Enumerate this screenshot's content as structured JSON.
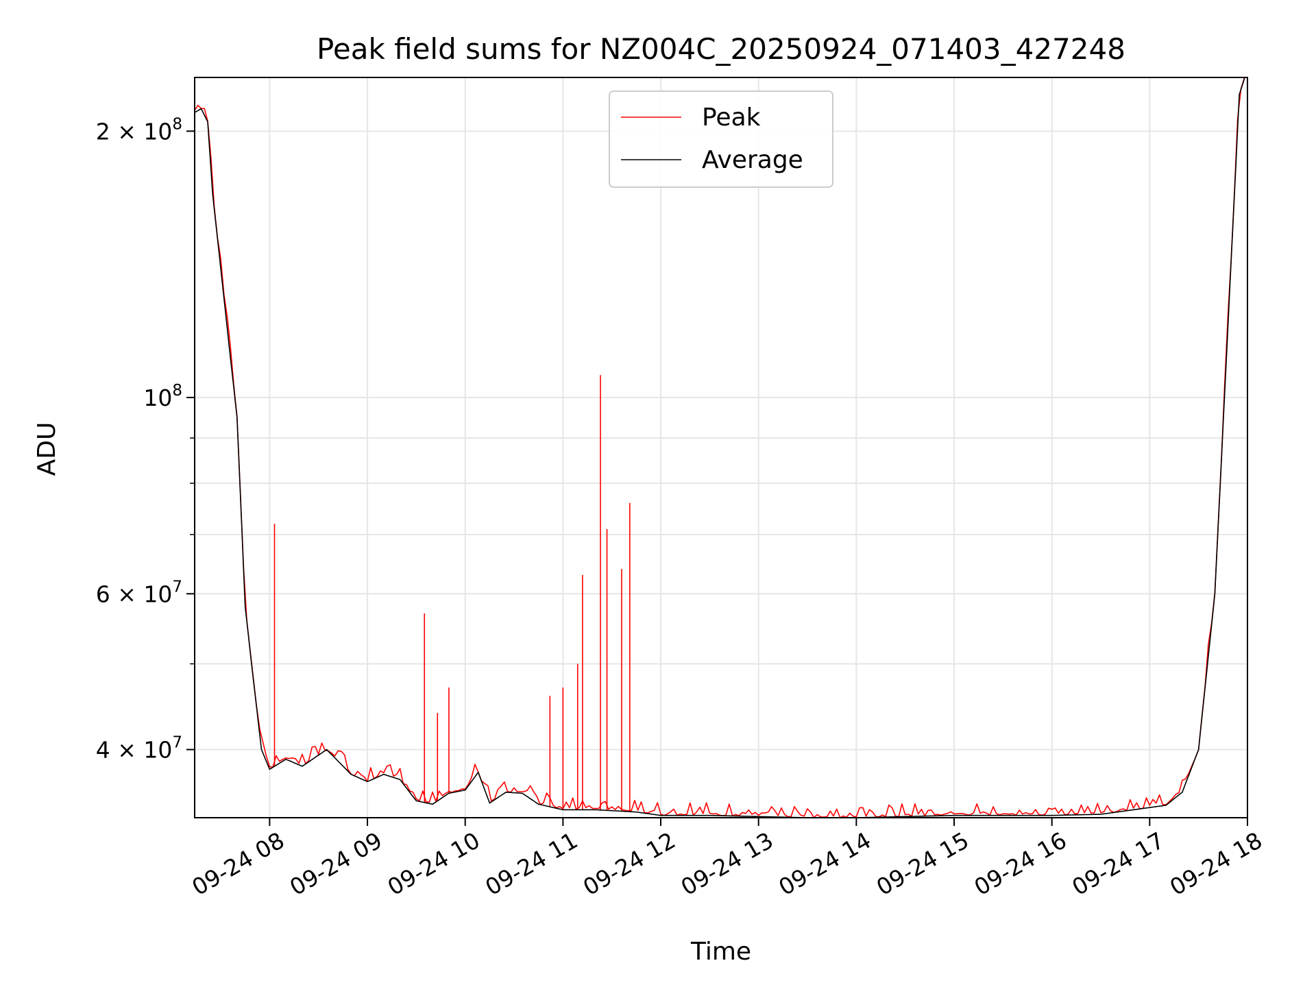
{
  "chart_data": {
    "type": "line",
    "title": "Peak field sums for NZ004C_20250924_071403_427248",
    "xlabel": "Time",
    "ylabel": "ADU",
    "x_scale": "time",
    "y_scale": "log",
    "xlim": [
      "2025-09-24 07:14",
      "2025-09-24 18:00"
    ],
    "ylim": [
      33500000,
      230000000
    ],
    "grid": true,
    "legend_position": "top-center",
    "x_ticks": [
      "09-24 08",
      "09-24 09",
      "09-24 10",
      "09-24 11",
      "09-24 12",
      "09-24 13",
      "09-24 14",
      "09-24 15",
      "09-24 16",
      "09-24 17",
      "09-24 18"
    ],
    "y_ticks": [
      {
        "value": 40000000,
        "label": "4 × 10",
        "exp": "7"
      },
      {
        "value": 60000000,
        "label": "6 × 10",
        "exp": "7"
      },
      {
        "value": 100000000,
        "label": "10",
        "exp": "8"
      },
      {
        "value": 200000000,
        "label": "2 × 10",
        "exp": "8"
      }
    ],
    "y_minor_ticks": [
      30000000,
      50000000,
      70000000,
      80000000,
      90000000
    ],
    "series": [
      {
        "name": "Average",
        "color": "#000000",
        "x": [
          "2025-09-24 07:14",
          "2025-09-24 07:18",
          "2025-09-24 07:22",
          "2025-09-24 07:25",
          "2025-09-24 07:30",
          "2025-09-24 07:35",
          "2025-09-24 07:40",
          "2025-09-24 07:45",
          "2025-09-24 07:50",
          "2025-09-24 07:55",
          "2025-09-24 08:00",
          "2025-09-24 08:10",
          "2025-09-24 08:20",
          "2025-09-24 08:35",
          "2025-09-24 08:50",
          "2025-09-24 09:00",
          "2025-09-24 09:10",
          "2025-09-24 09:20",
          "2025-09-24 09:30",
          "2025-09-24 09:40",
          "2025-09-24 09:50",
          "2025-09-24 10:00",
          "2025-09-24 10:08",
          "2025-09-24 10:15",
          "2025-09-24 10:25",
          "2025-09-24 10:35",
          "2025-09-24 10:45",
          "2025-09-24 11:00",
          "2025-09-24 11:20",
          "2025-09-24 11:45",
          "2025-09-24 12:00",
          "2025-09-24 12:30",
          "2025-09-24 13:00",
          "2025-09-24 13:30",
          "2025-09-24 14:00",
          "2025-09-24 14:30",
          "2025-09-24 15:00",
          "2025-09-24 15:30",
          "2025-09-24 16:00",
          "2025-09-24 16:30",
          "2025-09-24 17:00",
          "2025-09-24 17:10",
          "2025-09-24 17:20",
          "2025-09-24 17:30",
          "2025-09-24 17:40",
          "2025-09-24 17:48",
          "2025-09-24 17:55",
          "2025-09-24 18:00"
        ],
        "y": [
          210000000,
          212000000,
          205000000,
          170000000,
          140000000,
          115000000,
          95000000,
          58000000,
          48000000,
          40000000,
          38000000,
          39000000,
          38300000,
          40000000,
          37500000,
          36800000,
          37500000,
          37000000,
          35000000,
          34700000,
          35700000,
          36000000,
          37700000,
          34800000,
          35800000,
          35700000,
          34700000,
          34200000,
          34200000,
          34000000,
          33700000,
          33700000,
          33600000,
          33500000,
          33500000,
          33600000,
          33700000,
          33700000,
          33700000,
          33800000,
          34400000,
          34600000,
          35800000,
          40000000,
          60000000,
          120000000,
          220000000,
          235000000
        ]
      },
      {
        "name": "Peak",
        "color": "#ff0000",
        "spikes": [
          {
            "x": "2025-09-24 08:03",
            "y": 72000000
          },
          {
            "x": "2025-09-24 09:35",
            "y": 57000000
          },
          {
            "x": "2025-09-24 09:43",
            "y": 44000000
          },
          {
            "x": "2025-09-24 09:50",
            "y": 47000000
          },
          {
            "x": "2025-09-24 10:52",
            "y": 46000000
          },
          {
            "x": "2025-09-24 11:00",
            "y": 47000000
          },
          {
            "x": "2025-09-24 11:09",
            "y": 50000000
          },
          {
            "x": "2025-09-24 11:12",
            "y": 63000000
          },
          {
            "x": "2025-09-24 11:23",
            "y": 106000000
          },
          {
            "x": "2025-09-24 11:27",
            "y": 71000000
          },
          {
            "x": "2025-09-24 11:36",
            "y": 64000000
          },
          {
            "x": "2025-09-24 11:41",
            "y": 76000000
          }
        ]
      }
    ]
  }
}
